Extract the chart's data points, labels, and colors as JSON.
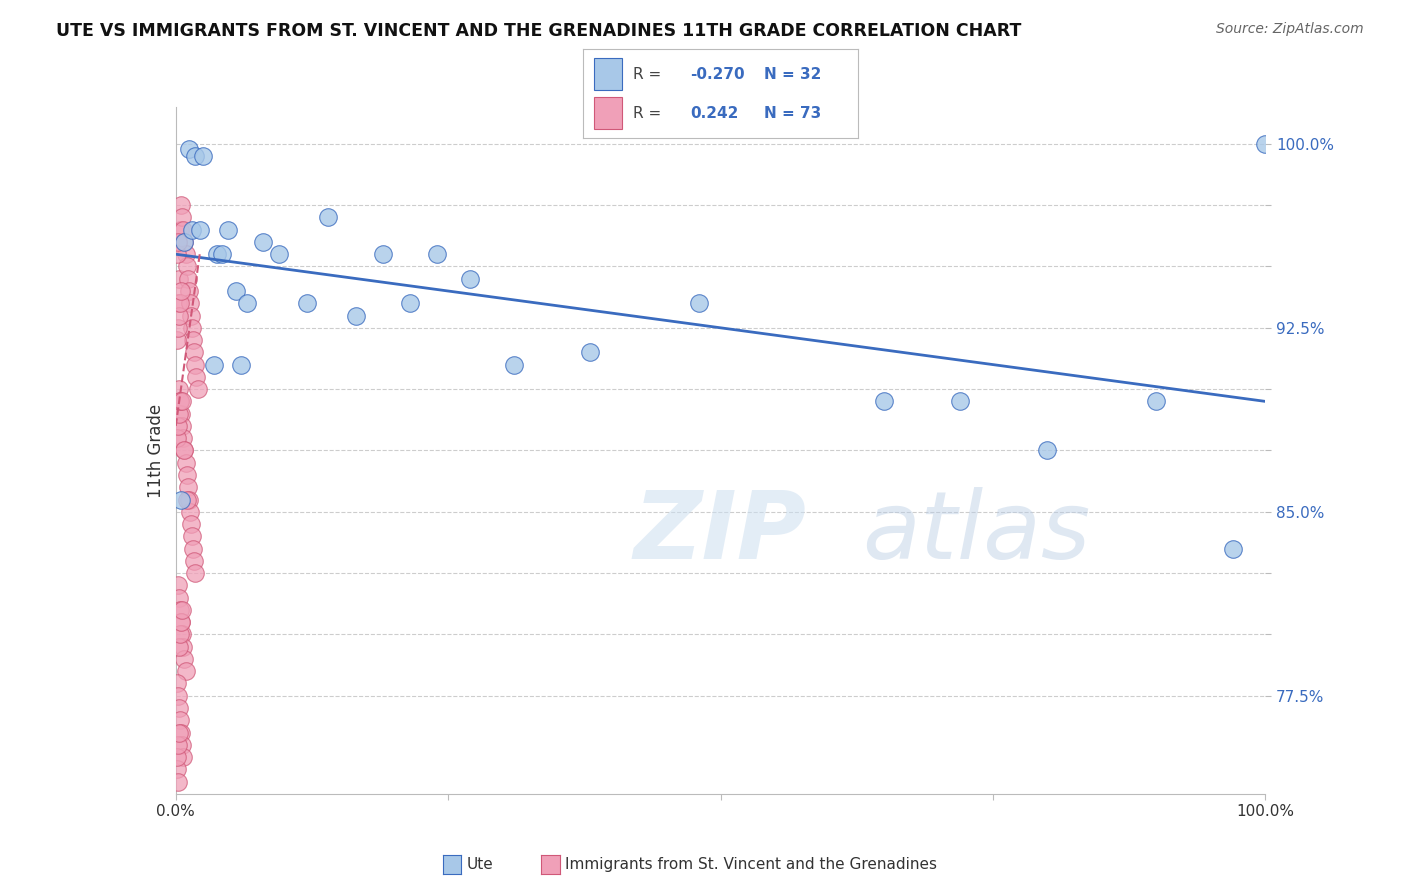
{
  "title": "UTE VS IMMIGRANTS FROM ST. VINCENT AND THE GRENADINES 11TH GRADE CORRELATION CHART",
  "source_text": "Source: ZipAtlas.com",
  "ylabel": "11th Grade",
  "legend_blue_r": "-0.270",
  "legend_blue_n": "32",
  "legend_pink_r": "0.242",
  "legend_pink_n": "73",
  "watermark_zip": "ZIP",
  "watermark_atlas": "atlas",
  "blue_color": "#a8c8e8",
  "blue_line_color": "#3a6bbf",
  "blue_edge_color": "#3a6bbf",
  "pink_color": "#f0a0b8",
  "pink_line_color": "#d05878",
  "pink_edge_color": "#d05878",
  "xlim": [
    0.0,
    1.0
  ],
  "ylim": [
    0.735,
    1.015
  ],
  "ytick_positions": [
    0.775,
    0.8,
    0.825,
    0.85,
    0.875,
    0.9,
    0.925,
    0.95,
    0.975,
    1.0
  ],
  "ytick_labels": [
    "77.5%",
    "",
    "",
    "85.0%",
    "",
    "",
    "92.5%",
    "",
    "",
    "100.0%"
  ],
  "grid_color": "#c8c8c8",
  "background_color": "#ffffff",
  "blue_scatter_x": [
    0.005,
    0.012,
    0.018,
    0.025,
    0.038,
    0.042,
    0.048,
    0.055,
    0.065,
    0.08,
    0.095,
    0.12,
    0.14,
    0.165,
    0.19,
    0.215,
    0.24,
    0.27,
    0.31,
    0.38,
    0.48,
    0.65,
    0.72,
    0.8,
    0.9,
    0.97,
    1.0,
    0.008,
    0.015,
    0.022,
    0.035,
    0.06
  ],
  "blue_scatter_y": [
    0.855,
    0.998,
    0.995,
    0.995,
    0.955,
    0.955,
    0.965,
    0.94,
    0.935,
    0.96,
    0.955,
    0.935,
    0.97,
    0.93,
    0.955,
    0.935,
    0.955,
    0.945,
    0.91,
    0.915,
    0.935,
    0.895,
    0.895,
    0.875,
    0.895,
    0.835,
    1.0,
    0.96,
    0.965,
    0.965,
    0.91,
    0.91
  ],
  "pink_scatter_x": [
    0.002,
    0.003,
    0.004,
    0.005,
    0.006,
    0.007,
    0.008,
    0.009,
    0.01,
    0.011,
    0.012,
    0.013,
    0.014,
    0.015,
    0.016,
    0.017,
    0.018,
    0.019,
    0.02,
    0.003,
    0.004,
    0.005,
    0.006,
    0.007,
    0.008,
    0.009,
    0.01,
    0.011,
    0.012,
    0.013,
    0.014,
    0.015,
    0.016,
    0.017,
    0.018,
    0.002,
    0.003,
    0.004,
    0.005,
    0.006,
    0.007,
    0.008,
    0.009,
    0.001,
    0.002,
    0.003,
    0.004,
    0.005,
    0.006,
    0.007,
    0.001,
    0.002,
    0.003,
    0.004,
    0.005,
    0.006,
    0.001,
    0.002,
    0.003,
    0.004,
    0.005,
    0.001,
    0.002,
    0.003,
    0.004,
    0.001,
    0.002,
    0.003,
    0.001,
    0.002,
    0.006,
    0.008,
    0.01
  ],
  "pink_scatter_y": [
    0.935,
    0.945,
    0.965,
    0.975,
    0.97,
    0.965,
    0.96,
    0.955,
    0.95,
    0.945,
    0.94,
    0.935,
    0.93,
    0.925,
    0.92,
    0.915,
    0.91,
    0.905,
    0.9,
    0.9,
    0.895,
    0.89,
    0.885,
    0.88,
    0.875,
    0.87,
    0.865,
    0.86,
    0.855,
    0.85,
    0.845,
    0.84,
    0.835,
    0.83,
    0.825,
    0.82,
    0.815,
    0.81,
    0.805,
    0.8,
    0.795,
    0.79,
    0.785,
    0.78,
    0.775,
    0.77,
    0.765,
    0.76,
    0.755,
    0.75,
    0.745,
    0.74,
    0.795,
    0.8,
    0.805,
    0.81,
    0.92,
    0.925,
    0.93,
    0.935,
    0.94,
    0.88,
    0.885,
    0.89,
    0.895,
    0.75,
    0.755,
    0.76,
    0.955,
    0.96,
    0.895,
    0.875,
    0.855
  ],
  "blue_trend_start_y": 0.955,
  "blue_trend_end_y": 0.895,
  "pink_trend_start_x": 0.0,
  "pink_trend_end_x": 0.022,
  "pink_trend_start_y": 0.885,
  "pink_trend_end_y": 0.955
}
